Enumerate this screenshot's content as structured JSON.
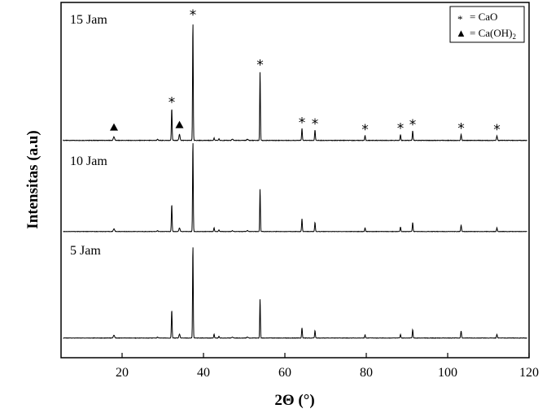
{
  "chart_data": {
    "type": "line",
    "xlabel": "2Θ (°)",
    "ylabel": "Intensitas (a.u)",
    "xlim": [
      5,
      120
    ],
    "xticks": [
      20,
      40,
      60,
      80,
      100,
      120
    ],
    "grid": false,
    "legend_position": "top-right",
    "legend": [
      {
        "symbol": "*",
        "label": "= CaO"
      },
      {
        "symbol": "▲",
        "label": "= Ca(OH)",
        "subscript": "2"
      }
    ],
    "peak_markers": [
      {
        "x": 18.0,
        "symbol": "▲"
      },
      {
        "x": 32.2,
        "symbol": "*"
      },
      {
        "x": 34.1,
        "symbol": "▲"
      },
      {
        "x": 37.4,
        "symbol": "*"
      },
      {
        "x": 53.9,
        "symbol": "*"
      },
      {
        "x": 64.2,
        "symbol": "*"
      },
      {
        "x": 67.4,
        "symbol": "*"
      },
      {
        "x": 79.7,
        "symbol": "*"
      },
      {
        "x": 88.4,
        "symbol": "*"
      },
      {
        "x": 91.4,
        "symbol": "*"
      },
      {
        "x": 103.3,
        "symbol": "*"
      },
      {
        "x": 112.1,
        "symbol": "*"
      }
    ],
    "peaks": [
      {
        "x": 18.0,
        "w": 0.35
      },
      {
        "x": 28.7,
        "w": 0.25
      },
      {
        "x": 32.2,
        "w": 0.2
      },
      {
        "x": 34.1,
        "w": 0.3
      },
      {
        "x": 37.4,
        "w": 0.18
      },
      {
        "x": 42.6,
        "w": 0.2
      },
      {
        "x": 43.8,
        "w": 0.2
      },
      {
        "x": 47.1,
        "w": 0.35
      },
      {
        "x": 50.8,
        "w": 0.35
      },
      {
        "x": 53.9,
        "w": 0.18
      },
      {
        "x": 64.2,
        "w": 0.2
      },
      {
        "x": 67.4,
        "w": 0.2
      },
      {
        "x": 79.7,
        "w": 0.2
      },
      {
        "x": 88.4,
        "w": 0.2
      },
      {
        "x": 91.4,
        "w": 0.2
      },
      {
        "x": 103.3,
        "w": 0.22
      },
      {
        "x": 112.1,
        "w": 0.22
      }
    ],
    "series": [
      {
        "name": "15 Jam",
        "intensities": [
          0.03,
          0.01,
          0.27,
          0.05,
          1.0,
          0.02,
          0.015,
          0.01,
          0.01,
          0.58,
          0.1,
          0.09,
          0.04,
          0.05,
          0.08,
          0.05,
          0.04
        ]
      },
      {
        "name": "10 Jam",
        "intensities": [
          0.03,
          0.01,
          0.3,
          0.04,
          1.0,
          0.04,
          0.02,
          0.01,
          0.01,
          0.47,
          0.14,
          0.1,
          0.04,
          0.05,
          0.1,
          0.07,
          0.04
        ]
      },
      {
        "name": "5 Jam",
        "intensities": [
          0.03,
          0.01,
          0.3,
          0.04,
          1.0,
          0.04,
          0.02,
          0.01,
          0.01,
          0.42,
          0.11,
          0.08,
          0.035,
          0.04,
          0.09,
          0.075,
          0.04
        ]
      }
    ]
  }
}
